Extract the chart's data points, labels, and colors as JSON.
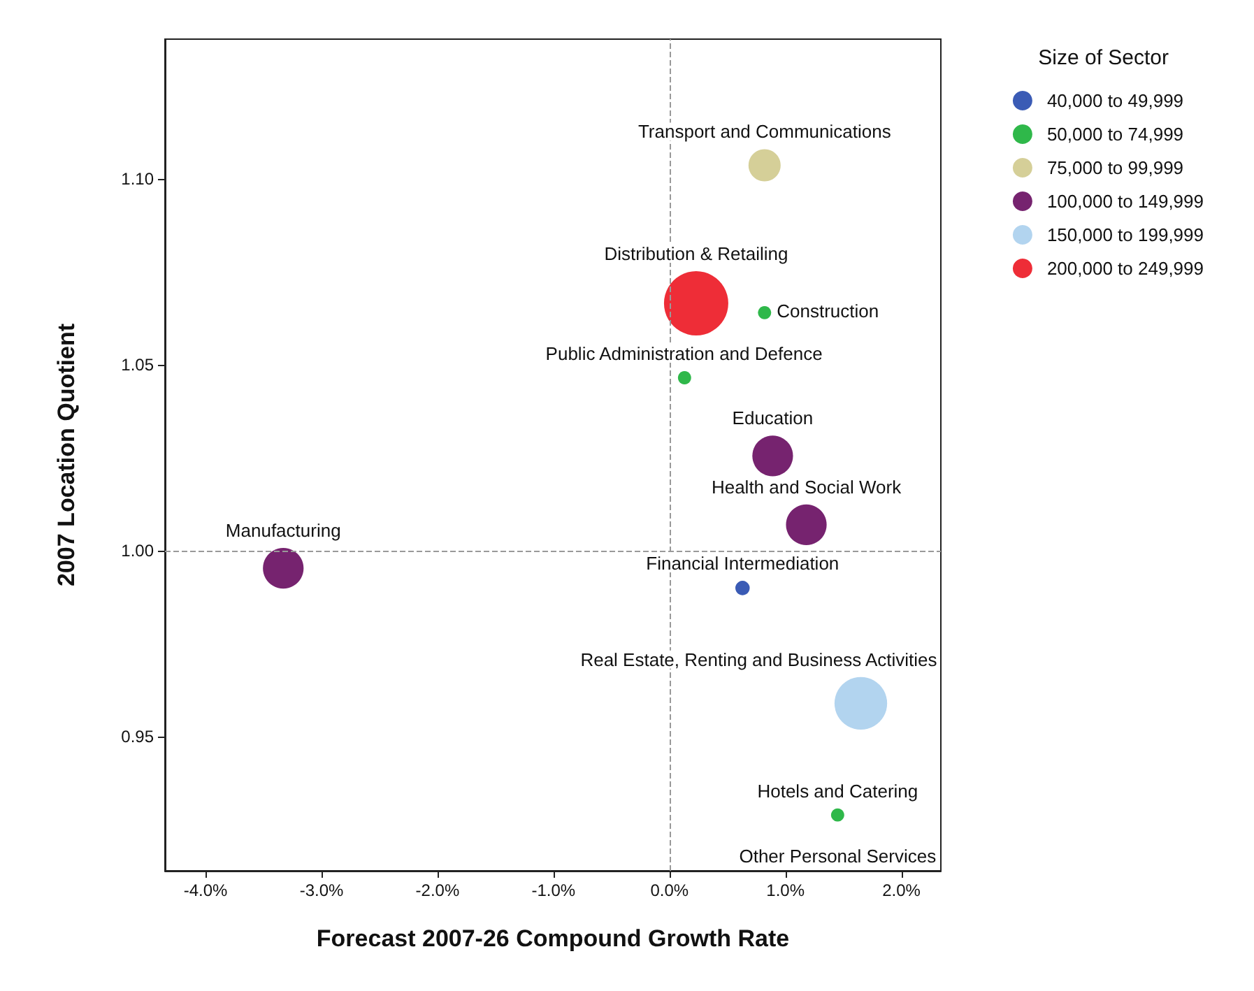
{
  "chart_data": {
    "type": "bubble",
    "xlabel": "Forecast 2007-26 Compound Growth Rate",
    "ylabel": "2007 Location Quotient",
    "legend_title": "Size of Sector",
    "legend": "top right",
    "grid": false,
    "marker": "circle",
    "xlim": [
      -4.35,
      2.34
    ],
    "ylim": [
      0.914,
      1.1375
    ],
    "xticks": [
      {
        "value": -4,
        "label": "-4.0%"
      },
      {
        "value": -3,
        "label": "-3.0%"
      },
      {
        "value": -2,
        "label": "-2.0%"
      },
      {
        "value": -1,
        "label": "-1.0%"
      },
      {
        "value": 0,
        "label": "0.0%"
      },
      {
        "value": 1,
        "label": "1.0%"
      },
      {
        "value": 2,
        "label": "2.0%"
      }
    ],
    "yticks": [
      {
        "value": 0.95,
        "label": "0.95"
      },
      {
        "value": 1.0,
        "label": "1.00"
      },
      {
        "value": 1.05,
        "label": "1.05"
      },
      {
        "value": 1.1,
        "label": "1.10"
      }
    ],
    "ref_lines": [
      {
        "axis": "x",
        "value": 0,
        "color": "#999999",
        "line_style": "dashed"
      },
      {
        "axis": "y",
        "value": 1.0,
        "color": "#999999",
        "line_style": "dashed"
      }
    ],
    "series": [
      {
        "name": "40,000 to 49,999",
        "color": "#3a5bb5",
        "x": [
          0.63
        ],
        "values": [
          0.99
        ],
        "sizes": [
          0.05
        ]
      },
      {
        "name": "50,000 to 74,999",
        "color": "#2fb84a",
        "x": [
          0.82,
          0.13,
          1.45
        ],
        "values": [
          1.064,
          1.0465,
          0.929
        ],
        "sizes": [
          0.042,
          0.042,
          0.042
        ]
      },
      {
        "name": "75,000 to 99,999",
        "color": "#d5cf98",
        "x": [
          0.82
        ],
        "values": [
          1.1036
        ],
        "sizes": [
          0.25
        ]
      },
      {
        "name": "100,000 to 149,999",
        "color": "#76236f",
        "x": [
          0.89,
          1.18,
          -3.33
        ],
        "values": [
          1.0255,
          1.007,
          0.9953
        ],
        "sizes": [
          0.4,
          0.4,
          0.4
        ]
      },
      {
        "name": "150,000 to 199,999",
        "color": "#b2d4ef",
        "x": [
          1.65
        ],
        "values": [
          0.959
        ],
        "sizes": [
          0.67
        ]
      },
      {
        "name": "200,000 to 249,999",
        "color": "#ee2d37",
        "x": [
          0.23
        ],
        "values": [
          1.0665
        ],
        "sizes": [
          1
        ]
      }
    ],
    "annotations": [
      {
        "text": "Transport and Communications",
        "x": 0.82,
        "y": 1.1036
      },
      {
        "text": "Distribution & Retailing",
        "x": 0.23,
        "y": 1.0665
      },
      {
        "text": "Construction",
        "x": 0.82,
        "y": 1.064
      },
      {
        "text": "Public Administration and Defence",
        "x": 0.13,
        "y": 1.0465
      },
      {
        "text": "Education",
        "x": 0.89,
        "y": 1.0255
      },
      {
        "text": "Health and Social Work",
        "x": 1.18,
        "y": 1.007
      },
      {
        "text": "Manufacturing",
        "x": -3.33,
        "y": 0.9953
      },
      {
        "text": "Financial Intermediation",
        "x": 0.63,
        "y": 0.99
      },
      {
        "text": "Real Estate, Renting and Business Activities",
        "x": 1.65,
        "y": 0.959
      },
      {
        "text": "Hotels and Catering",
        "x": 1.45,
        "y": 0.929
      },
      {
        "text": "Other Personal Services",
        "x": 1.45,
        "y": 0.929
      }
    ]
  }
}
